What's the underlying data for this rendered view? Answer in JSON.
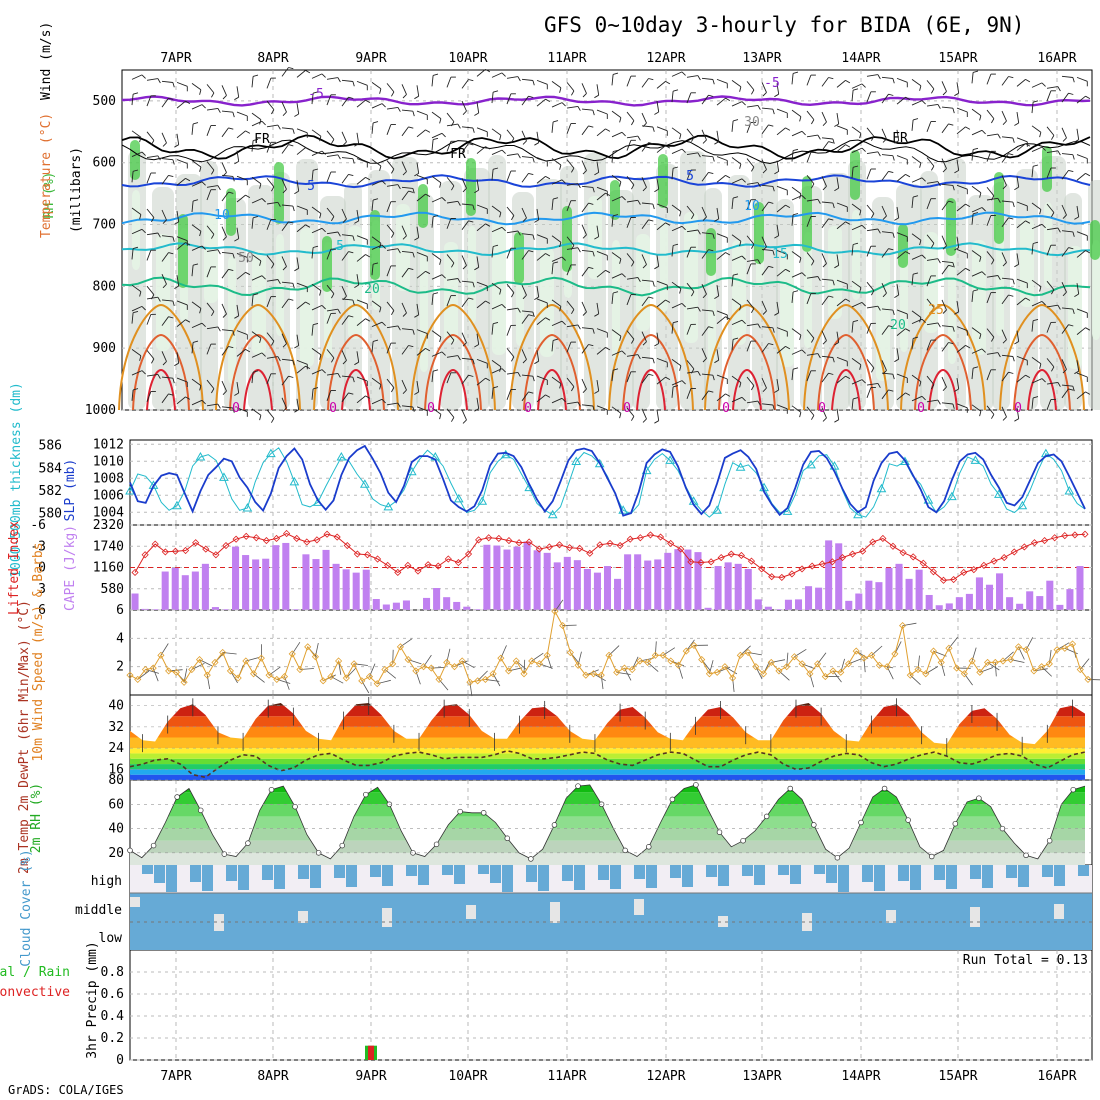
{
  "title": "GFS 0~10day 3-hourly for BIDA (6E, 9N)",
  "footer": "GrADS: COLA/IGES",
  "colors": {
    "rh_green": "#3cc83c",
    "rh_light": "#e6f4e6",
    "rh_grey": "#c8d2c8",
    "thickness": "#22bbcc",
    "slp": "#1a3ccc",
    "lifted": "#dd2222",
    "cape": "#c080f0",
    "wind10": "#e0a030",
    "precip_total": "#22bb22",
    "precip_conv": "#dd2222",
    "cloud": "#66aad6"
  },
  "chart_data": [
    {
      "id": "cross-section",
      "type": "heatmap",
      "title": "",
      "ylabel_parts": [
        "RH (%)",
        "Temperature (°C)",
        "Wind (m/s)"
      ],
      "ylabel_units": "(millibars)",
      "ylim": [
        1000,
        450
      ],
      "yticks": [
        "500",
        "600",
        "700",
        "800",
        "900",
        "1000"
      ],
      "contour_labels": [
        "-5",
        "-5",
        "FR",
        "FR",
        "FR",
        "5",
        "5",
        "10",
        "10",
        "5",
        "15",
        "20",
        "20",
        "25",
        "30",
        "50",
        "0",
        "0",
        "0",
        "0",
        "0",
        "0",
        "0",
        "0",
        "0",
        "0"
      ]
    },
    {
      "id": "thickness-slp",
      "type": "line",
      "ylabel_left": "1000-500mb thickness (dm)",
      "ylabel_right": "SLP (mb)",
      "yticks_left": [
        "586",
        "584",
        "582",
        "580"
      ],
      "yticks_right": [
        "1012",
        "1010",
        "1008",
        "1006",
        "1004"
      ],
      "ylim_left": [
        579,
        586.5
      ],
      "ylim_right": [
        1002.5,
        1012.5
      ],
      "series": [
        {
          "name": "thickness",
          "values": [
            582,
            583.5,
            583.3,
            582.5,
            581,
            580.3,
            580.7,
            582,
            584.2,
            585,
            585.2,
            584.7,
            583.2,
            581.3,
            580.3,
            580.5,
            582.8,
            584.5,
            585.3,
            585.8,
            584.6,
            582.8,
            580.8,
            580.6,
            581,
            582.4,
            583.7,
            585,
            584.6,
            583.5,
            582.6,
            581.3,
            580.8,
            580.6,
            581.1,
            582.1,
            583.7,
            584.8,
            585.6,
            585,
            584.2,
            582.7,
            581.3,
            580.1,
            580.3,
            581.1,
            583.6,
            584.6,
            585.2,
            584.8,
            583.5,
            582.3,
            580.9,
            580.3,
            579.9,
            580.6,
            582.6,
            584.6,
            585.4,
            585.1,
            584.4,
            583.3,
            581.7,
            580.3,
            580,
            580.8,
            583.8,
            584.8,
            585.3,
            584.7,
            583.8,
            582.4,
            581.1,
            580.3,
            579.7,
            580.3,
            582.6,
            584.5,
            584.1,
            584.3,
            583.6,
            582.3,
            580.9,
            580.1,
            580.2,
            581.7,
            583.8,
            584.3,
            585.1,
            585.2,
            584.2,
            582.1,
            580.5,
            579.9,
            579.7,
            580.6,
            582.2,
            584.4,
            584.2,
            584.6,
            583.3,
            582.6,
            581.2,
            580.1,
            580.6,
            581.5,
            583.6,
            585,
            584.7,
            584.2,
            582.6,
            581.7,
            580.4,
            580.1,
            580.7,
            582.1,
            583.8,
            585.3,
            584.8,
            583.8,
            582,
            580.9,
            580.4
          ]
        },
        {
          "name": "SLP",
          "values": [
            1007.5,
            1005.3,
            1005.1,
            1007.1,
            1008.3,
            1008.6,
            1008.4,
            1006.2,
            1004.1,
            1006.5,
            1008.4,
            1009.3,
            1010.3,
            1010,
            1008.1,
            1006.9,
            1005.2,
            1004.2,
            1006.2,
            1009.2,
            1010.6,
            1011.5,
            1010.2,
            1007.3,
            1005.4,
            1004.3,
            1005.4,
            1008.4,
            1010.4,
            1011.3,
            1011.8,
            1010.3,
            1008.6,
            1006.3,
            1005.2,
            1007.1,
            1009.9,
            1010.6,
            1010.6,
            1010.2,
            1007.9,
            1005.4,
            1004.6,
            1004.1,
            1004.7,
            1006.6,
            1009.5,
            1010.9,
            1011,
            1010.6,
            1009.3,
            1007.3,
            1005.5,
            1004.1,
            1005.3,
            1007.6,
            1010.1,
            1011.3,
            1011.5,
            1011.2,
            1009.8,
            1008,
            1006.2,
            1003.6,
            1003.9,
            1006.4,
            1009.8,
            1010.8,
            1011.4,
            1011.1,
            1009.4,
            1006.9,
            1004.9,
            1003.8,
            1004.8,
            1007.4,
            1010.4,
            1010.9,
            1011.3,
            1010.5,
            1009.1,
            1006.4,
            1004.9,
            1003.7,
            1004.5,
            1006.9,
            1009.6,
            1011.1,
            1011.2,
            1010.4,
            1008.8,
            1006.8,
            1005,
            1004,
            1004.6,
            1007.7,
            1009.8,
            1010.9,
            1011.1,
            1010.1,
            1008.4,
            1006.7,
            1004.6,
            1004,
            1005.3,
            1007.8,
            1010,
            1010.8,
            1011,
            1010.2,
            1008.4,
            1006.9,
            1005.1,
            1004.8,
            1005.8,
            1007.8,
            1009.8,
            1010.6,
            1010.8,
            1010,
            1008.2,
            1006.3,
            1004.4
          ]
        }
      ]
    },
    {
      "id": "lifted-cape",
      "type": "bar",
      "ylabel_left": "Lifted Index",
      "ylabel_right": "CAPE (J/kg)",
      "yticks_left": [
        "-6",
        "-3",
        "0",
        "3",
        "6"
      ],
      "yticks_right": [
        "2320",
        "1740",
        "1160",
        "580"
      ],
      "ylim_left": [
        6,
        -6
      ],
      "ylim_right": [
        0,
        2320
      ],
      "series": [
        {
          "name": "CAPE",
          "values": [
            450,
            30,
            20,
            1050,
            1150,
            950,
            1050,
            1260,
            80,
            20,
            1730,
            1500,
            1380,
            1400,
            1770,
            1830,
            20,
            1520,
            1390,
            1640,
            1260,
            1110,
            1020,
            1100,
            300,
            150,
            200,
            260,
            0,
            330,
            600,
            350,
            220,
            90,
            20,
            1780,
            1760,
            1650,
            1730,
            1870,
            1630,
            1560,
            1300,
            1450,
            1360,
            1120,
            1020,
            1200,
            850,
            1520,
            1520,
            1350,
            1380,
            1560,
            1660,
            1650,
            1580,
            60,
            1200,
            1300,
            1260,
            1120,
            290,
            90,
            20,
            280,
            290,
            650,
            610,
            1900,
            1820,
            250,
            450,
            800,
            760,
            1150,
            1260,
            850,
            1100,
            410,
            130,
            180,
            350,
            440,
            890,
            690,
            1000,
            350,
            170,
            510,
            380,
            800,
            140,
            570,
            1200
          ]
        },
        {
          "name": "Lifted Index",
          "values": [
            0.7,
            -1.8,
            -3.3,
            -2.2,
            -2.3,
            -2.4,
            -3.5,
            -2.6,
            -1.8,
            -3.1,
            -4,
            -4.4,
            -4.2,
            -3.8,
            -4.1,
            -4.8,
            -4.1,
            -3.6,
            -3.9,
            -4.7,
            -4.3,
            -3.1,
            -1.9,
            -1.8,
            -1.2,
            -0.3,
            0.7,
            -0.3,
            0.5,
            -0.4,
            -0.2,
            -1.2,
            -0.7,
            -1.9,
            -3.9,
            -4.2,
            -4.1,
            -3.8,
            -3.5,
            -3.6,
            -2.6,
            -2.9,
            -3.2,
            -2.8,
            -2.7,
            -2,
            -3.2,
            -3.4,
            -3.1,
            -4,
            -4.2,
            -4.6,
            -4.3,
            -3.4,
            -2.6,
            -0.8,
            -0.7,
            -0.8,
            -1.4,
            -1.9,
            -1.7,
            -0.9,
            0.2,
            1.3,
            1.4,
            0.9,
            0.2,
            -0.2,
            -0.5,
            -0.8,
            -1.4,
            -1.9,
            -2.3,
            -3.6,
            -4.1,
            -3,
            -2.1,
            -1.5,
            -0.6,
            0.6,
            1.8,
            1.7,
            0.7,
            0.3,
            -0.3,
            -0.9,
            -1.4,
            -2.2,
            -2.9,
            -3.5,
            -3.8,
            -4.2,
            -4.5,
            -4.6,
            -4.7
          ]
        }
      ]
    },
    {
      "id": "wind10",
      "type": "line",
      "ylabel": "10m Wind Speed (m/s) & Barbs",
      "yticks": [
        "6",
        "4",
        "2"
      ],
      "ylim": [
        0,
        6
      ],
      "series": [
        {
          "name": "10m wind speed",
          "values": [
            1.4,
            1.1,
            1.8,
            1.9,
            2.8,
            1.7,
            1.6,
            0.9,
            1.8,
            2.5,
            1.4,
            2.3,
            3,
            1.7,
            1.2,
            2.4,
            1.5,
            2.6,
            1.4,
            1.1,
            1.3,
            2.9,
            1.8,
            3.4,
            2.7,
            1,
            1.3,
            2.4,
            1.2,
            2.2,
            1,
            1.3,
            0.8,
            1.8,
            2.2,
            3.4,
            2.5,
            1.7,
            2,
            1.9,
            1.1,
            2.3,
            2,
            2.4,
            0.9,
            1,
            1.1,
            1.5,
            2.6,
            1.7,
            2.4,
            1.5,
            2.4,
            2.2,
            2.8,
            5.9,
            4.9,
            3,
            2.1,
            1.4,
            1.5,
            1.4,
            2.8,
            1.6,
            1.9,
            1.8,
            2.4,
            2.3,
            2.8,
            2.8,
            2.4,
            2.1,
            3.1,
            3.5,
            2.5,
            1.5,
            1.6,
            2,
            1.2,
            2.8,
            3,
            2,
            1.5,
            2.3,
            1.7,
            2,
            2.7,
            2.2,
            1.5,
            2.2,
            1.3,
            1.7,
            1.6,
            2.2,
            3.1,
            2.6,
            2.8,
            2.1,
            2,
            2.9,
            4.9,
            1.4,
            1.8,
            1.5,
            3.1,
            2.3,
            3.3,
            1.9,
            1.5,
            2.4,
            1.6,
            2.3,
            2.3,
            2.4,
            2.5,
            3.4,
            3.2,
            1.7,
            2,
            2.2,
            3.2,
            3.3,
            3.6,
            1.8,
            1.1
          ]
        }
      ]
    },
    {
      "id": "temp-dewpt",
      "type": "area",
      "ylabel": "2m Temp 2m DewPt (6hr Min/Max) (°C)",
      "yticks": [
        "40",
        "32",
        "24",
        "16"
      ],
      "ylim": [
        12,
        44
      ],
      "series": [
        {
          "name": "2m Temp",
          "values": [
            30.5,
            27,
            26.5,
            34,
            39,
            40.5,
            36.5,
            30,
            28,
            27.5,
            35,
            40,
            41,
            37,
            30.5,
            27.5,
            27,
            35.5,
            40.5,
            41,
            36.5,
            30.5,
            27.5,
            27.5,
            34.5,
            40,
            40.5,
            36.5,
            30.5,
            27.5,
            27.5,
            34,
            39,
            39.5,
            36,
            30.5,
            27.5,
            27,
            33.5,
            38.5,
            39.5,
            35.5,
            30,
            27.5,
            27,
            33.5,
            38.5,
            39.5,
            35.5,
            30,
            27,
            27,
            34.5,
            40,
            41,
            37,
            30.5,
            27,
            26.5,
            34,
            39.5,
            40.5,
            36.5,
            30,
            26,
            25.5,
            33,
            38,
            39,
            35,
            29,
            26,
            25.5,
            30.5,
            39,
            40,
            37
          ]
        },
        {
          "name": "2m DewPt",
          "values": [
            17,
            18,
            19.5,
            20,
            18,
            14,
            13,
            16.5,
            19.5,
            21.5,
            21,
            17.5,
            15.5,
            16.5,
            19.5,
            21.5,
            22,
            19.5,
            17.5,
            17.5,
            18.5,
            21,
            22,
            22.5,
            21.5,
            20,
            20.5,
            20.5,
            20.5,
            21.5,
            23,
            22,
            20,
            20,
            20.5,
            21.5,
            22.5,
            22,
            19.5,
            18,
            17.5,
            19.5,
            21.5,
            22.5,
            22,
            19.5,
            17,
            17,
            19.5,
            21.5,
            22.5,
            21.5,
            18,
            16,
            16.5,
            19,
            21,
            22,
            21.5,
            18.5,
            17,
            18,
            20,
            21.5,
            22.5,
            21,
            18.5,
            18,
            19.5,
            21.5,
            22,
            21,
            18,
            16.5,
            19,
            21.5,
            22.5
          ]
        }
      ]
    },
    {
      "id": "rh2m",
      "type": "area",
      "ylabel": "2m RH (%)",
      "yticks": [
        "80",
        "60",
        "40",
        "20"
      ],
      "ylim": [
        10,
        80
      ],
      "series": [
        {
          "name": "2m RH",
          "values": [
            22,
            16,
            26,
            45,
            66,
            73,
            55,
            35,
            19,
            17,
            28,
            55,
            72,
            75,
            58,
            35,
            20,
            15,
            26,
            50,
            68,
            74,
            60,
            38,
            20,
            17,
            27,
            43,
            54,
            53,
            53,
            45,
            32,
            20,
            15,
            23,
            43,
            65,
            75,
            76,
            60,
            40,
            22,
            17,
            25,
            45,
            64,
            73,
            76,
            56,
            37,
            25,
            30,
            38,
            50,
            64,
            73,
            64,
            43,
            23,
            16,
            24,
            45,
            66,
            73,
            66,
            47,
            25,
            17,
            22,
            44,
            62,
            65,
            58,
            40,
            28,
            18,
            15,
            30,
            60,
            72,
            75
          ]
        }
      ]
    },
    {
      "id": "cloud-cover",
      "type": "bar",
      "ylabel": "Cloud Cover (%)",
      "levels": [
        "high",
        "middle",
        "low"
      ]
    },
    {
      "id": "precip",
      "type": "bar",
      "ylabel": "3hr Precip (mm)",
      "legend": [
        "Total / Rain",
        "Convective"
      ],
      "yticks": [
        "0.8",
        "0.6",
        "0.4",
        "0.2",
        "0"
      ],
      "ylim": [
        0,
        1.0
      ],
      "run_total": "Run Total = 0.13",
      "bars": [
        {
          "x": "9APR",
          "total": 0.13,
          "convective": 0.13
        }
      ]
    }
  ],
  "xaxis": {
    "tick_labels": [
      "7APR",
      "8APR",
      "9APR",
      "10APR",
      "11APR",
      "12APR",
      "13APR",
      "14APR",
      "15APR",
      "16APR"
    ]
  }
}
